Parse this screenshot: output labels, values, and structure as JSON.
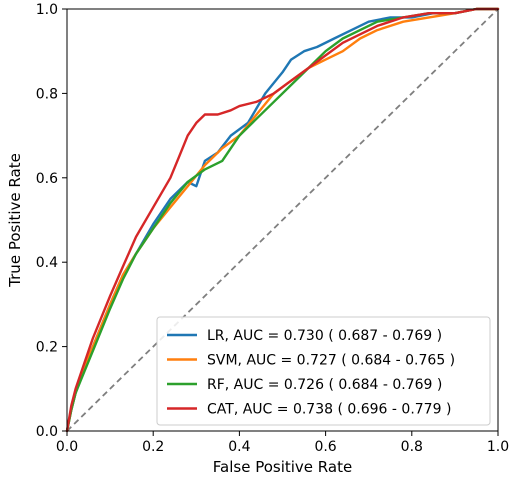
{
  "chart_data": {
    "type": "line",
    "xlabel": "False Positive Rate",
    "ylabel": "True Positive Rate",
    "xlim": [
      0.0,
      1.0
    ],
    "ylim": [
      0.0,
      1.0
    ],
    "x_ticks": [
      "0.0",
      "0.2",
      "0.4",
      "0.6",
      "0.8",
      "1.0"
    ],
    "y_ticks": [
      "0.0",
      "0.2",
      "0.4",
      "0.6",
      "0.8",
      "1.0"
    ],
    "grid": false,
    "legend_position": "bottom-right",
    "reference_line": {
      "style": "dashed",
      "color": "#7f7f7f",
      "x": [
        0.0,
        1.0
      ],
      "y": [
        0.0,
        1.0
      ]
    },
    "series": [
      {
        "name": "LR, AUC = 0.730 ( 0.687 - 0.769 )",
        "color": "#1f77b4",
        "x": [
          0.0,
          0.01,
          0.02,
          0.04,
          0.06,
          0.08,
          0.1,
          0.13,
          0.16,
          0.2,
          0.24,
          0.28,
          0.3,
          0.32,
          0.35,
          0.38,
          0.42,
          0.46,
          0.5,
          0.52,
          0.55,
          0.58,
          0.62,
          0.66,
          0.7,
          0.75,
          0.8,
          0.85,
          0.9,
          0.95,
          1.0
        ],
        "y": [
          0.0,
          0.05,
          0.09,
          0.15,
          0.2,
          0.25,
          0.3,
          0.37,
          0.42,
          0.49,
          0.55,
          0.59,
          0.58,
          0.64,
          0.66,
          0.7,
          0.73,
          0.8,
          0.85,
          0.88,
          0.9,
          0.91,
          0.93,
          0.95,
          0.97,
          0.98,
          0.98,
          0.99,
          0.99,
          1.0,
          1.0
        ]
      },
      {
        "name": "SVM, AUC = 0.727 ( 0.684 - 0.765 )",
        "color": "#ff7f0e",
        "x": [
          0.0,
          0.01,
          0.02,
          0.04,
          0.06,
          0.08,
          0.1,
          0.13,
          0.16,
          0.2,
          0.24,
          0.28,
          0.32,
          0.36,
          0.4,
          0.44,
          0.48,
          0.52,
          0.56,
          0.6,
          0.64,
          0.68,
          0.72,
          0.78,
          0.84,
          0.9,
          0.95,
          1.0
        ],
        "y": [
          0.0,
          0.05,
          0.09,
          0.15,
          0.2,
          0.25,
          0.3,
          0.37,
          0.42,
          0.48,
          0.53,
          0.58,
          0.63,
          0.67,
          0.7,
          0.75,
          0.8,
          0.83,
          0.86,
          0.88,
          0.9,
          0.93,
          0.95,
          0.97,
          0.98,
          0.99,
          1.0,
          1.0
        ]
      },
      {
        "name": "RF, AUC = 0.726 ( 0.684 - 0.769 )",
        "color": "#2ca02c",
        "x": [
          0.0,
          0.01,
          0.02,
          0.04,
          0.06,
          0.08,
          0.1,
          0.13,
          0.16,
          0.2,
          0.24,
          0.28,
          0.32,
          0.36,
          0.4,
          0.44,
          0.48,
          0.52,
          0.56,
          0.6,
          0.64,
          0.68,
          0.72,
          0.78,
          0.84,
          0.9,
          0.95,
          1.0
        ],
        "y": [
          0.0,
          0.05,
          0.09,
          0.14,
          0.19,
          0.24,
          0.29,
          0.36,
          0.42,
          0.48,
          0.54,
          0.59,
          0.62,
          0.64,
          0.7,
          0.74,
          0.78,
          0.82,
          0.86,
          0.9,
          0.93,
          0.95,
          0.97,
          0.98,
          0.99,
          0.99,
          1.0,
          1.0
        ]
      },
      {
        "name": "CAT, AUC = 0.738 ( 0.696 - 0.779 )",
        "color": "#d62728",
        "x": [
          0.0,
          0.01,
          0.02,
          0.04,
          0.06,
          0.08,
          0.1,
          0.13,
          0.16,
          0.2,
          0.24,
          0.26,
          0.28,
          0.3,
          0.32,
          0.35,
          0.38,
          0.4,
          0.44,
          0.48,
          0.52,
          0.56,
          0.6,
          0.64,
          0.68,
          0.72,
          0.78,
          0.84,
          0.9,
          0.95,
          1.0
        ],
        "y": [
          0.0,
          0.06,
          0.1,
          0.16,
          0.22,
          0.27,
          0.32,
          0.39,
          0.46,
          0.53,
          0.6,
          0.65,
          0.7,
          0.73,
          0.75,
          0.75,
          0.76,
          0.77,
          0.78,
          0.8,
          0.83,
          0.86,
          0.89,
          0.92,
          0.94,
          0.96,
          0.98,
          0.99,
          0.99,
          1.0,
          1.0
        ]
      }
    ]
  }
}
